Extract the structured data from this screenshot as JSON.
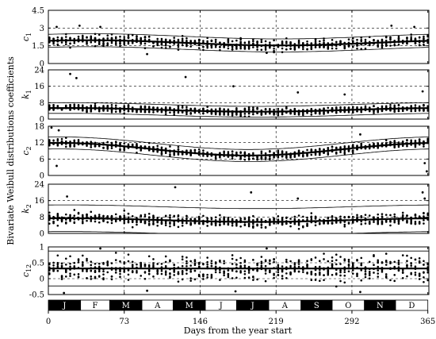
{
  "chart_data": {
    "type": "scatter",
    "y_common_label": "Bivariate Weibull distributions coefficients",
    "xlabel": "Days from the year start",
    "xlim": [
      0,
      366
    ],
    "xticks": [
      0,
      73,
      146,
      219,
      292,
      365
    ],
    "xtick_labels": [
      "0",
      "73",
      "146",
      "219",
      "292",
      "365"
    ],
    "grid_dashed": true,
    "months": [
      {
        "label": "J",
        "start": 0,
        "end": 31,
        "fill": "black"
      },
      {
        "label": "F",
        "start": 31,
        "end": 59,
        "fill": "white"
      },
      {
        "label": "M",
        "start": 59,
        "end": 90,
        "fill": "black"
      },
      {
        "label": "A",
        "start": 90,
        "end": 120,
        "fill": "white"
      },
      {
        "label": "M",
        "start": 120,
        "end": 151,
        "fill": "black"
      },
      {
        "label": "J",
        "start": 151,
        "end": 181,
        "fill": "white"
      },
      {
        "label": "J",
        "start": 181,
        "end": 212,
        "fill": "black"
      },
      {
        "label": "A",
        "start": 212,
        "end": 243,
        "fill": "white"
      },
      {
        "label": "S",
        "start": 243,
        "end": 273,
        "fill": "black"
      },
      {
        "label": "O",
        "start": 273,
        "end": 304,
        "fill": "white"
      },
      {
        "label": "N",
        "start": 304,
        "end": 334,
        "fill": "black"
      },
      {
        "label": "D",
        "start": 334,
        "end": 365,
        "fill": "white"
      }
    ],
    "panels": [
      {
        "symbol": "c",
        "sub": "1",
        "ylim": [
          0,
          4.5
        ],
        "yticks": [
          0,
          1.5,
          3,
          4.5
        ],
        "ytick_labels": [
          "0",
          "1.5",
          "3",
          "4.5"
        ],
        "mean": {
          "base": 1.75,
          "amp": 0.22,
          "phase": 40
        },
        "band": 0.55,
        "scatter_sd": 0.42,
        "outliers": [
          [
            8,
            3.1
          ],
          [
            30,
            3.2
          ],
          [
            50,
            3.1
          ],
          [
            95,
            0.8
          ],
          [
            210,
            0.9
          ],
          [
            330,
            3.2
          ],
          [
            352,
            3.1
          ]
        ]
      },
      {
        "symbol": "k",
        "sub": "1",
        "ylim": [
          0,
          24
        ],
        "yticks": [
          0,
          8,
          16,
          24
        ],
        "ytick_labels": [
          "0",
          "8",
          "16",
          "24"
        ],
        "mean": {
          "base": 4.5,
          "amp": -0.9,
          "phase": 200
        },
        "band": 2.6,
        "scatter_sd": 1.7,
        "outliers": [
          [
            21,
            22
          ],
          [
            27,
            20
          ],
          [
            132,
            20.5
          ],
          [
            240,
            13
          ],
          [
            285,
            12
          ],
          [
            360,
            13.5
          ],
          [
            178,
            16
          ]
        ]
      },
      {
        "symbol": "c",
        "sub": "2",
        "ylim": [
          0,
          18
        ],
        "yticks": [
          0,
          6,
          12,
          18
        ],
        "ytick_labels": [
          "0",
          "6",
          "12",
          "18"
        ],
        "mean": {
          "base": 9.6,
          "amp": 2.3,
          "phase": 10
        },
        "band": 2.2,
        "scatter_sd": 1.3,
        "outliers": [
          [
            3,
            17.5
          ],
          [
            10,
            16.5
          ],
          [
            8,
            3.5
          ],
          [
            300,
            15
          ],
          [
            364,
            1.5
          ],
          [
            362,
            4.5
          ]
        ]
      },
      {
        "symbol": "k",
        "sub": "2",
        "ylim": [
          0,
          24
        ],
        "yticks": [
          0,
          8,
          16,
          24
        ],
        "ytick_labels": [
          "0",
          "8",
          "16",
          "24"
        ],
        "mean": {
          "base": 6.5,
          "amp": -0.9,
          "phase": 200
        },
        "band": 6.5,
        "scatter_sd": 2.6,
        "outliers": [
          [
            122,
            22.5
          ],
          [
            195,
            20
          ],
          [
            18,
            18
          ],
          [
            240,
            17
          ],
          [
            362,
            17
          ],
          [
            360,
            20
          ]
        ]
      },
      {
        "symbol": "c",
        "sub": "12",
        "ylim": [
          -0.5,
          1
        ],
        "yticks": [
          -0.5,
          0,
          0.5,
          1
        ],
        "ytick_labels": [
          "-0.5",
          "0",
          "0.5",
          "1"
        ],
        "mean": {
          "base": 0.32,
          "amp": 0.0,
          "phase": 0
        },
        "band": 0.55,
        "scatter_sd": 0.34,
        "outliers": [
          [
            15,
            -0.45
          ],
          [
            95,
            -0.38
          ],
          [
            180,
            -0.4
          ],
          [
            300,
            -0.42
          ],
          [
            50,
            0.95
          ],
          [
            210,
            0.95
          ]
        ]
      }
    ]
  }
}
